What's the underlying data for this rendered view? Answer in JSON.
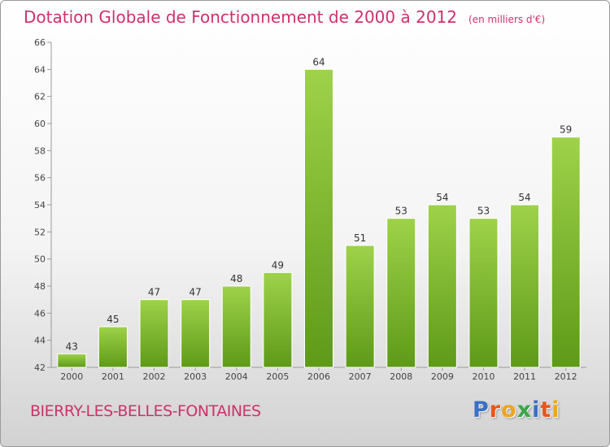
{
  "chart_data": {
    "type": "bar",
    "title": "Dotation Globale de Fonctionnement de 2000 à 2012",
    "subtitle": "(en milliers d'€)",
    "categories": [
      "2000",
      "2001",
      "2002",
      "2003",
      "2004",
      "2005",
      "2006",
      "2007",
      "2008",
      "2009",
      "2010",
      "2011",
      "2012"
    ],
    "values": [
      43,
      45,
      47,
      47,
      48,
      49,
      64,
      51,
      53,
      54,
      53,
      54,
      59
    ],
    "ylim": [
      42,
      66
    ],
    "yticks": [
      42,
      44,
      46,
      48,
      50,
      52,
      54,
      56,
      58,
      60,
      62,
      64,
      66
    ],
    "grid": false,
    "bar_color": "#7fbf2e"
  },
  "footer": {
    "city": "BIERRY-LES-BELLES-FONTAINES",
    "logo": "Proxiti"
  },
  "colors": {
    "title": "#d0306a",
    "logo_letters": [
      "#3a6fc4",
      "#e8561d",
      "#f0a51e",
      "#3aa64a",
      "#3a6fc4",
      "#e8561d",
      "#f0a51e"
    ]
  }
}
